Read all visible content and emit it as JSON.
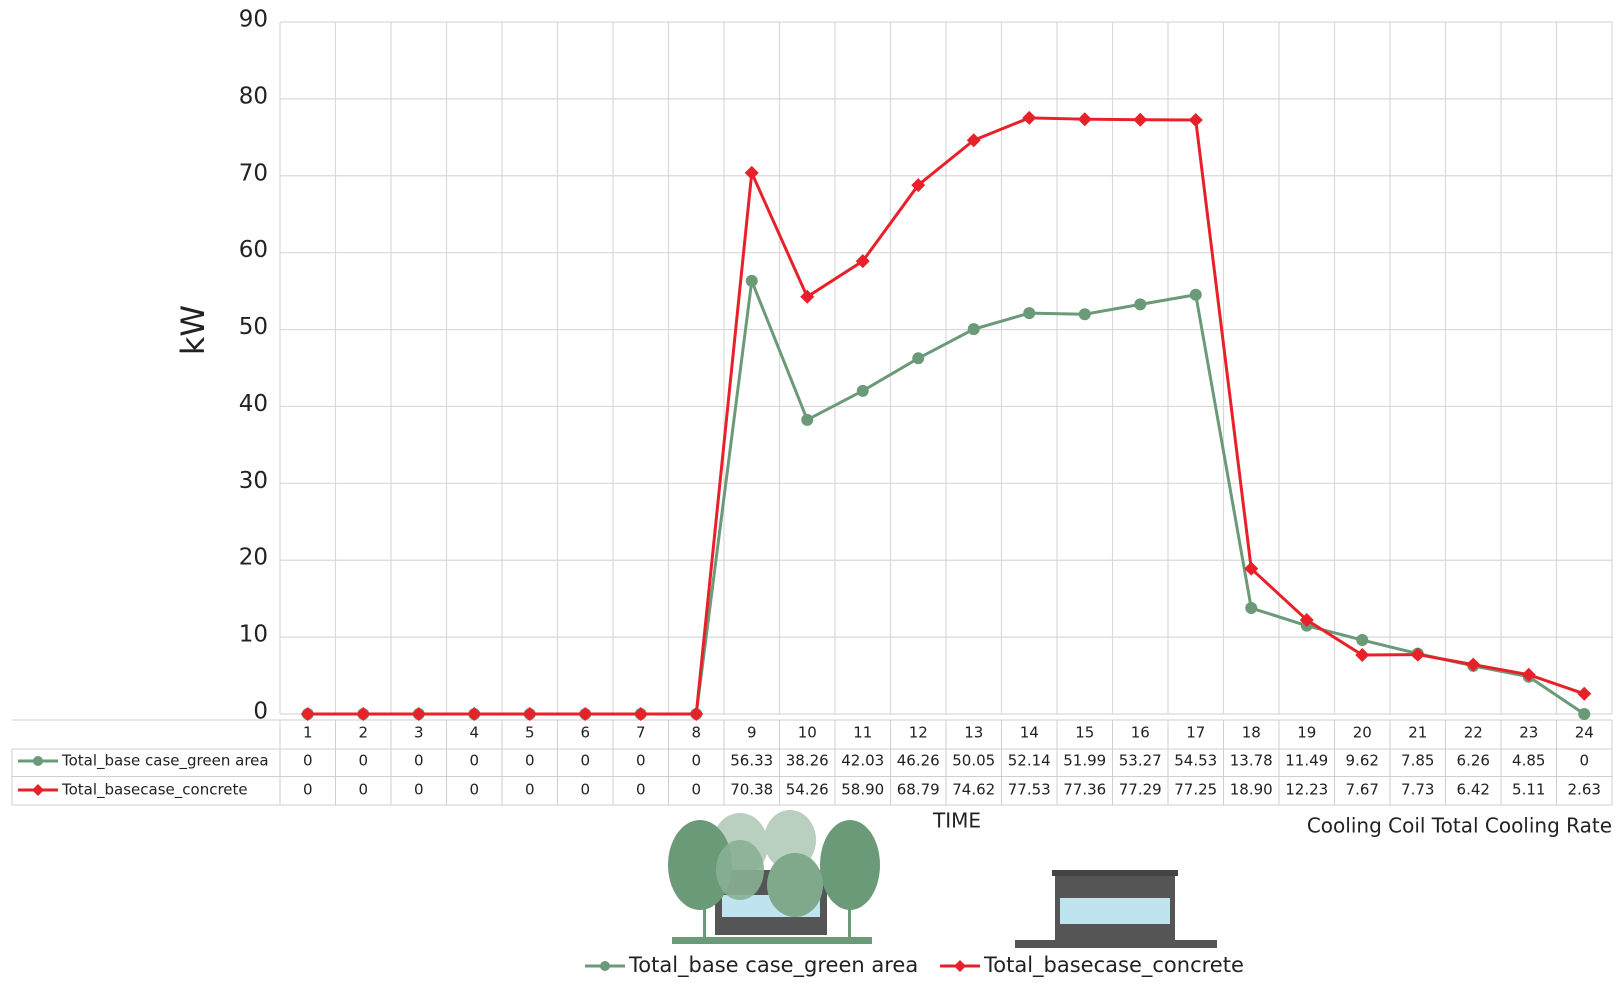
{
  "chart_data": {
    "type": "line",
    "y_label": "kW",
    "x_label": "TIME",
    "annotation": "Cooling Coil Total Cooling Rate",
    "categories": [
      "1",
      "2",
      "3",
      "4",
      "5",
      "6",
      "7",
      "8",
      "9",
      "10",
      "11",
      "12",
      "13",
      "14",
      "15",
      "16",
      "17",
      "18",
      "19",
      "20",
      "21",
      "22",
      "23",
      "24"
    ],
    "series": [
      {
        "name": "Total_base case_green area",
        "color": "#6a9a78",
        "marker": "circle",
        "values": [
          0,
          0,
          0,
          0,
          0,
          0,
          0,
          0,
          56.33,
          38.26,
          42.03,
          46.26,
          50.05,
          52.14,
          51.99,
          53.27,
          54.53,
          13.78,
          11.49,
          9.62,
          7.85,
          6.26,
          4.85,
          0
        ]
      },
      {
        "name": "Total_basecase_concrete",
        "color": "#e8202a",
        "marker": "diamond",
        "values": [
          0,
          0,
          0,
          0,
          0,
          0,
          0,
          0,
          70.38,
          54.26,
          58.9,
          68.79,
          74.62,
          77.53,
          77.36,
          77.29,
          77.25,
          18.9,
          12.23,
          7.67,
          7.73,
          6.42,
          5.11,
          2.63
        ],
        "value_labels": [
          "0",
          "0",
          "0",
          "0",
          "0",
          "0",
          "0",
          "0",
          "70.38",
          "54.26",
          "58.90",
          "68.79",
          "74.62",
          "77.53",
          "77.36",
          "77.29",
          "77.25",
          "18.90",
          "12.23",
          "7.67",
          "7.73",
          "6.42",
          "5.11",
          "2.63"
        ]
      }
    ],
    "ylim": [
      0,
      90
    ],
    "yticks": [
      0,
      10,
      20,
      30,
      40,
      50,
      60,
      70,
      80,
      90
    ],
    "grid": true
  }
}
